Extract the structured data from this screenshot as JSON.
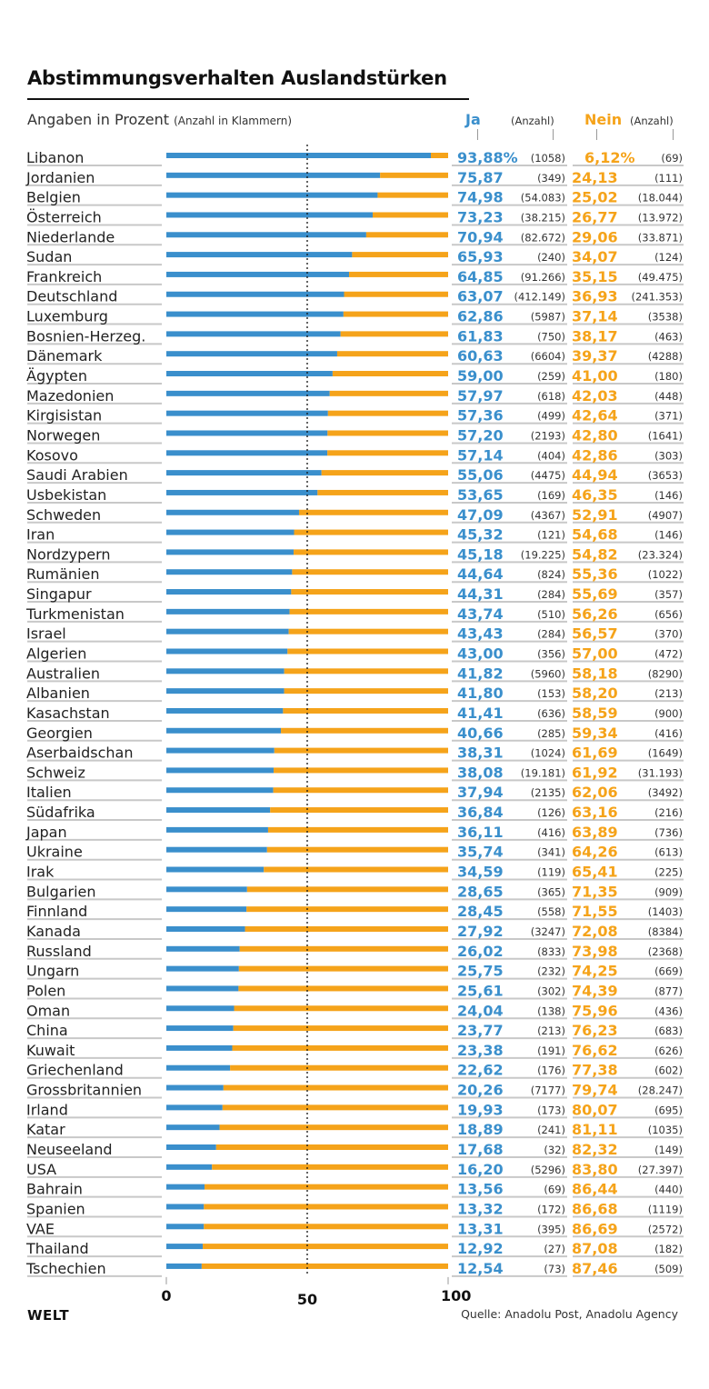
{
  "header": {
    "title": "Abstimmungsverhalten Auslandstürken",
    "subtitle_main": "Angaben in Prozent",
    "subtitle_note": "(Anzahl in Klammern)",
    "col_ja": "Ja",
    "col_ja_count": "(Anzahl)",
    "col_nein": "Nein",
    "col_nein_count": "(Anzahl)"
  },
  "footer": {
    "logo": "WELT",
    "source": "Quelle: Anadolu Post, Anadolu Agency"
  },
  "colors": {
    "ja": "#3a8fcc",
    "nein": "#f5a31a",
    "rule": "#c8c8c8"
  },
  "chart_data": {
    "type": "bar",
    "stacked": true,
    "orientation": "horizontal",
    "title": "Abstimmungsverhalten Auslandstürken",
    "subtitle": "Angaben in Prozent (Anzahl in Klammern)",
    "xlim": [
      0,
      100
    ],
    "x_ticks": [
      "0",
      "50",
      "100"
    ],
    "reference_line": 50,
    "legend": [
      "Ja",
      "Nein"
    ],
    "first_row_suffix": "%",
    "rows": [
      {
        "country": "Libanon",
        "ja": "93,88",
        "ja_n": "(1058)",
        "nein": "6,12",
        "nein_n": "(69)"
      },
      {
        "country": "Jordanien",
        "ja": "75,87",
        "ja_n": "(349)",
        "nein": "24,13",
        "nein_n": "(111)"
      },
      {
        "country": "Belgien",
        "ja": "74,98",
        "ja_n": "(54.083)",
        "nein": "25,02",
        "nein_n": "(18.044)"
      },
      {
        "country": "Österreich",
        "ja": "73,23",
        "ja_n": "(38.215)",
        "nein": "26,77",
        "nein_n": "(13.972)"
      },
      {
        "country": "Niederlande",
        "ja": "70,94",
        "ja_n": "(82.672)",
        "nein": "29,06",
        "nein_n": "(33.871)"
      },
      {
        "country": "Sudan",
        "ja": "65,93",
        "ja_n": "(240)",
        "nein": "34,07",
        "nein_n": "(124)"
      },
      {
        "country": "Frankreich",
        "ja": "64,85",
        "ja_n": "(91.266)",
        "nein": "35,15",
        "nein_n": "(49.475)"
      },
      {
        "country": "Deutschland",
        "ja": "63,07",
        "ja_n": "(412.149)",
        "nein": "36,93",
        "nein_n": "(241.353)"
      },
      {
        "country": "Luxemburg",
        "ja": "62,86",
        "ja_n": "(5987)",
        "nein": "37,14",
        "nein_n": "(3538)"
      },
      {
        "country": "Bosnien-Herzeg.",
        "ja": "61,83",
        "ja_n": "(750)",
        "nein": "38,17",
        "nein_n": "(463)"
      },
      {
        "country": "Dänemark",
        "ja": "60,63",
        "ja_n": "(6604)",
        "nein": "39,37",
        "nein_n": "(4288)"
      },
      {
        "country": "Ägypten",
        "ja": "59,00",
        "ja_n": "(259)",
        "nein": "41,00",
        "nein_n": "(180)"
      },
      {
        "country": "Mazedonien",
        "ja": "57,97",
        "ja_n": "(618)",
        "nein": "42,03",
        "nein_n": "(448)"
      },
      {
        "country": "Kirgisistan",
        "ja": "57,36",
        "ja_n": "(499)",
        "nein": "42,64",
        "nein_n": "(371)"
      },
      {
        "country": "Norwegen",
        "ja": "57,20",
        "ja_n": "(2193)",
        "nein": "42,80",
        "nein_n": "(1641)"
      },
      {
        "country": "Kosovo",
        "ja": "57,14",
        "ja_n": "(404)",
        "nein": "42,86",
        "nein_n": "(303)"
      },
      {
        "country": "Saudi Arabien",
        "ja": "55,06",
        "ja_n": "(4475)",
        "nein": "44,94",
        "nein_n": "(3653)"
      },
      {
        "country": "Usbekistan",
        "ja": "53,65",
        "ja_n": "(169)",
        "nein": "46,35",
        "nein_n": "(146)"
      },
      {
        "country": "Schweden",
        "ja": "47,09",
        "ja_n": "(4367)",
        "nein": "52,91",
        "nein_n": "(4907)"
      },
      {
        "country": "Iran",
        "ja": "45,32",
        "ja_n": "(121)",
        "nein": "54,68",
        "nein_n": "(146)"
      },
      {
        "country": "Nordzypern",
        "ja": "45,18",
        "ja_n": "(19.225)",
        "nein": "54,82",
        "nein_n": "(23.324)"
      },
      {
        "country": "Rumänien",
        "ja": "44,64",
        "ja_n": "(824)",
        "nein": "55,36",
        "nein_n": "(1022)"
      },
      {
        "country": "Singapur",
        "ja": "44,31",
        "ja_n": "(284)",
        "nein": "55,69",
        "nein_n": "(357)"
      },
      {
        "country": "Turkmenistan",
        "ja": "43,74",
        "ja_n": "(510)",
        "nein": "56,26",
        "nein_n": "(656)"
      },
      {
        "country": "Israel",
        "ja": "43,43",
        "ja_n": "(284)",
        "nein": "56,57",
        "nein_n": "(370)"
      },
      {
        "country": "Algerien",
        "ja": "43,00",
        "ja_n": "(356)",
        "nein": "57,00",
        "nein_n": "(472)"
      },
      {
        "country": "Australien",
        "ja": "41,82",
        "ja_n": "(5960)",
        "nein": "58,18",
        "nein_n": "(8290)"
      },
      {
        "country": "Albanien",
        "ja": "41,80",
        "ja_n": "(153)",
        "nein": "58,20",
        "nein_n": "(213)"
      },
      {
        "country": "Kasachstan",
        "ja": "41,41",
        "ja_n": "(636)",
        "nein": "58,59",
        "nein_n": "(900)"
      },
      {
        "country": "Georgien",
        "ja": "40,66",
        "ja_n": "(285)",
        "nein": "59,34",
        "nein_n": "(416)"
      },
      {
        "country": "Aserbaidschan",
        "ja": "38,31",
        "ja_n": "(1024)",
        "nein": "61,69",
        "nein_n": "(1649)"
      },
      {
        "country": "Schweiz",
        "ja": "38,08",
        "ja_n": "(19.181)",
        "nein": "61,92",
        "nein_n": "(31.193)"
      },
      {
        "country": "Italien",
        "ja": "37,94",
        "ja_n": "(2135)",
        "nein": "62,06",
        "nein_n": "(3492)"
      },
      {
        "country": "Südafrika",
        "ja": "36,84",
        "ja_n": "(126)",
        "nein": "63,16",
        "nein_n": "(216)"
      },
      {
        "country": "Japan",
        "ja": "36,11",
        "ja_n": "(416)",
        "nein": "63,89",
        "nein_n": "(736)"
      },
      {
        "country": "Ukraine",
        "ja": "35,74",
        "ja_n": "(341)",
        "nein": "64,26",
        "nein_n": "(613)"
      },
      {
        "country": "Irak",
        "ja": "34,59",
        "ja_n": "(119)",
        "nein": "65,41",
        "nein_n": "(225)"
      },
      {
        "country": "Bulgarien",
        "ja": "28,65",
        "ja_n": "(365)",
        "nein": "71,35",
        "nein_n": "(909)"
      },
      {
        "country": "Finnland",
        "ja": "28,45",
        "ja_n": "(558)",
        "nein": "71,55",
        "nein_n": "(1403)"
      },
      {
        "country": "Kanada",
        "ja": "27,92",
        "ja_n": "(3247)",
        "nein": "72,08",
        "nein_n": "(8384)"
      },
      {
        "country": "Russland",
        "ja": "26,02",
        "ja_n": "(833)",
        "nein": "73,98",
        "nein_n": "(2368)"
      },
      {
        "country": "Ungarn",
        "ja": "25,75",
        "ja_n": "(232)",
        "nein": "74,25",
        "nein_n": "(669)"
      },
      {
        "country": "Polen",
        "ja": "25,61",
        "ja_n": "(302)",
        "nein": "74,39",
        "nein_n": "(877)"
      },
      {
        "country": "Oman",
        "ja": "24,04",
        "ja_n": "(138)",
        "nein": "75,96",
        "nein_n": "(436)"
      },
      {
        "country": "China",
        "ja": "23,77",
        "ja_n": "(213)",
        "nein": "76,23",
        "nein_n": "(683)"
      },
      {
        "country": "Kuwait",
        "ja": "23,38",
        "ja_n": "(191)",
        "nein": "76,62",
        "nein_n": "(626)"
      },
      {
        "country": "Griechenland",
        "ja": "22,62",
        "ja_n": "(176)",
        "nein": "77,38",
        "nein_n": "(602)"
      },
      {
        "country": "Grossbritannien",
        "ja": "20,26",
        "ja_n": "(7177)",
        "nein": "79,74",
        "nein_n": "(28.247)"
      },
      {
        "country": "Irland",
        "ja": "19,93",
        "ja_n": "(173)",
        "nein": "80,07",
        "nein_n": "(695)"
      },
      {
        "country": "Katar",
        "ja": "18,89",
        "ja_n": "(241)",
        "nein": "81,11",
        "nein_n": "(1035)"
      },
      {
        "country": "Neuseeland",
        "ja": "17,68",
        "ja_n": "(32)",
        "nein": "82,32",
        "nein_n": "(149)"
      },
      {
        "country": "USA",
        "ja": "16,20",
        "ja_n": "(5296)",
        "nein": "83,80",
        "nein_n": "(27.397)"
      },
      {
        "country": "Bahrain",
        "ja": "13,56",
        "ja_n": "(69)",
        "nein": "86,44",
        "nein_n": "(440)"
      },
      {
        "country": "Spanien",
        "ja": "13,32",
        "ja_n": "(172)",
        "nein": "86,68",
        "nein_n": "(1119)"
      },
      {
        "country": "VAE",
        "ja": "13,31",
        "ja_n": "(395)",
        "nein": "86,69",
        "nein_n": "(2572)"
      },
      {
        "country": "Thailand",
        "ja": "12,92",
        "ja_n": "(27)",
        "nein": "87,08",
        "nein_n": "(182)"
      },
      {
        "country": "Tschechien",
        "ja": "12,54",
        "ja_n": "(73)",
        "nein": "87,46",
        "nein_n": "(509)"
      }
    ]
  }
}
